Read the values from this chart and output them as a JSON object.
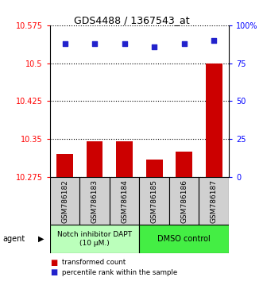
{
  "title": "GDS4488 / 1367543_at",
  "samples": [
    "GSM786182",
    "GSM786183",
    "GSM786184",
    "GSM786185",
    "GSM786186",
    "GSM786187"
  ],
  "bar_values": [
    10.32,
    10.345,
    10.345,
    10.31,
    10.325,
    10.5
  ],
  "percentile_values": [
    88,
    88,
    88,
    86,
    88,
    90
  ],
  "y_min": 10.275,
  "y_max": 10.575,
  "y_ticks": [
    10.275,
    10.35,
    10.425,
    10.5,
    10.575
  ],
  "y_tick_labels": [
    "10.275",
    "10.35",
    "10.425",
    "10.5",
    "10.575"
  ],
  "y_right_ticks": [
    0,
    25,
    50,
    75,
    100
  ],
  "y_right_labels": [
    "0",
    "25",
    "50",
    "75",
    "100%"
  ],
  "bar_color": "#cc0000",
  "dot_color": "#2222cc",
  "group1_label": "Notch inhibitor DAPT\n(10 μM.)",
  "group2_label": "DMSO control",
  "group1_color": "#bbffbb",
  "group2_color": "#44ee44",
  "group1_indices": [
    0,
    1,
    2
  ],
  "group2_indices": [
    3,
    4,
    5
  ],
  "legend_bar_label": "transformed count",
  "legend_dot_label": "percentile rank within the sample",
  "agent_label": "agent"
}
